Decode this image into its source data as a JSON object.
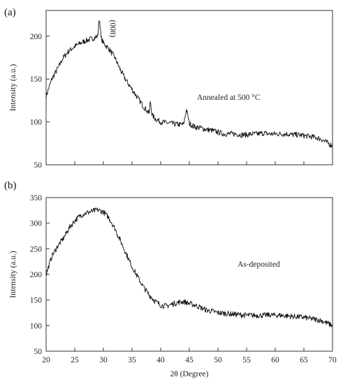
{
  "chart_data": [
    {
      "type": "line",
      "panel_label": "(a)",
      "annotation": "Annealed at 500 °C",
      "peak_label": "(008)",
      "ylabel": "Intensity (a.u.)",
      "xlabel": "",
      "xlim": [
        20,
        70
      ],
      "ylim": [
        50,
        230
      ],
      "yticks": [
        50,
        100,
        150,
        200
      ],
      "xticks": [
        20,
        25,
        30,
        35,
        40,
        45,
        50,
        55,
        60,
        65,
        70
      ],
      "x_tick_labels_shown": false,
      "series": [
        {
          "x": [
            20,
            21,
            22,
            23,
            24,
            25,
            26,
            27,
            28,
            29,
            29.3,
            29.6,
            30,
            31,
            32,
            33,
            34,
            35,
            36,
            37,
            38,
            38.2,
            38.5,
            39,
            40,
            41,
            42,
            43,
            44,
            44.5,
            45,
            46,
            47,
            48,
            49,
            50,
            51,
            52,
            53,
            54,
            55,
            56,
            57,
            58,
            59,
            60,
            61,
            62,
            63,
            64,
            65,
            66,
            67,
            68,
            69,
            70
          ],
          "y": [
            130,
            150,
            162,
            175,
            183,
            188,
            192,
            195,
            197,
            200,
            222,
            198,
            192,
            185,
            175,
            160,
            148,
            138,
            128,
            118,
            110,
            125,
            108,
            104,
            100,
            99,
            98,
            97,
            97,
            115,
            98,
            94,
            93,
            91,
            90,
            88,
            86,
            86,
            86,
            85,
            85,
            86,
            86,
            87,
            86,
            86,
            86,
            86,
            85,
            85,
            84,
            83,
            82,
            80,
            76,
            72
          ]
        }
      ]
    },
    {
      "type": "line",
      "panel_label": "(b)",
      "annotation": "As-deposited",
      "ylabel": "Intensity (a.u.)",
      "xlabel": "2θ (Degree)",
      "xlim": [
        20,
        70
      ],
      "ylim": [
        50,
        350
      ],
      "yticks": [
        50,
        100,
        150,
        200,
        250,
        300,
        350
      ],
      "xticks": [
        20,
        25,
        30,
        35,
        40,
        45,
        50,
        55,
        60,
        65,
        70
      ],
      "x_tick_labels_shown": true,
      "series": [
        {
          "x": [
            20,
            21,
            22,
            23,
            24,
            25,
            26,
            27,
            28,
            29,
            30,
            31,
            32,
            33,
            34,
            35,
            36,
            37,
            38,
            39,
            40,
            41,
            42,
            43,
            44,
            45,
            46,
            47,
            48,
            49,
            50,
            51,
            52,
            53,
            54,
            55,
            56,
            57,
            58,
            59,
            60,
            61,
            62,
            63,
            64,
            65,
            66,
            67,
            68,
            69,
            70
          ],
          "y": [
            200,
            235,
            255,
            270,
            290,
            305,
            315,
            320,
            323,
            326,
            322,
            310,
            290,
            265,
            240,
            215,
            195,
            175,
            160,
            148,
            140,
            138,
            142,
            145,
            147,
            143,
            140,
            135,
            130,
            128,
            125,
            124,
            123,
            122,
            121,
            120,
            120,
            120,
            120,
            121,
            120,
            120,
            119,
            118,
            117,
            116,
            114,
            112,
            110,
            105,
            100
          ]
        }
      ]
    }
  ]
}
